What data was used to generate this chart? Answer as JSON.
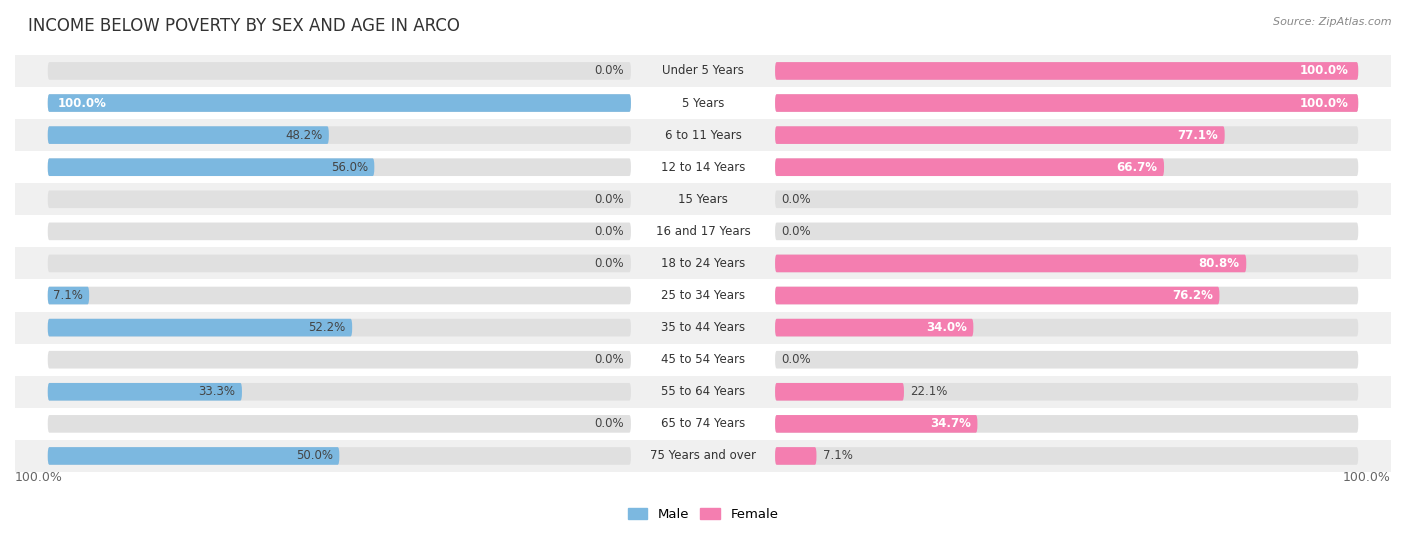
{
  "title": "INCOME BELOW POVERTY BY SEX AND AGE IN ARCO",
  "source": "Source: ZipAtlas.com",
  "categories": [
    "Under 5 Years",
    "5 Years",
    "6 to 11 Years",
    "12 to 14 Years",
    "15 Years",
    "16 and 17 Years",
    "18 to 24 Years",
    "25 to 34 Years",
    "35 to 44 Years",
    "45 to 54 Years",
    "55 to 64 Years",
    "65 to 74 Years",
    "75 Years and over"
  ],
  "male": [
    0.0,
    100.0,
    48.2,
    56.0,
    0.0,
    0.0,
    0.0,
    7.1,
    52.2,
    0.0,
    33.3,
    0.0,
    50.0
  ],
  "female": [
    100.0,
    100.0,
    77.1,
    66.7,
    0.0,
    0.0,
    80.8,
    76.2,
    34.0,
    0.0,
    22.1,
    34.7,
    7.1
  ],
  "male_color": "#7cb8e0",
  "female_color": "#f47eb0",
  "male_label": "Male",
  "female_label": "Female",
  "bar_bg_color": "#e0e0e0",
  "row_bg_colors": [
    "#f0f0f0",
    "#ffffff"
  ],
  "axis_label_left": "100.0%",
  "axis_label_right": "100.0%",
  "title_fontsize": 12,
  "label_fontsize": 8.5,
  "cat_fontsize": 8.5,
  "tick_fontsize": 9,
  "source_fontsize": 8
}
